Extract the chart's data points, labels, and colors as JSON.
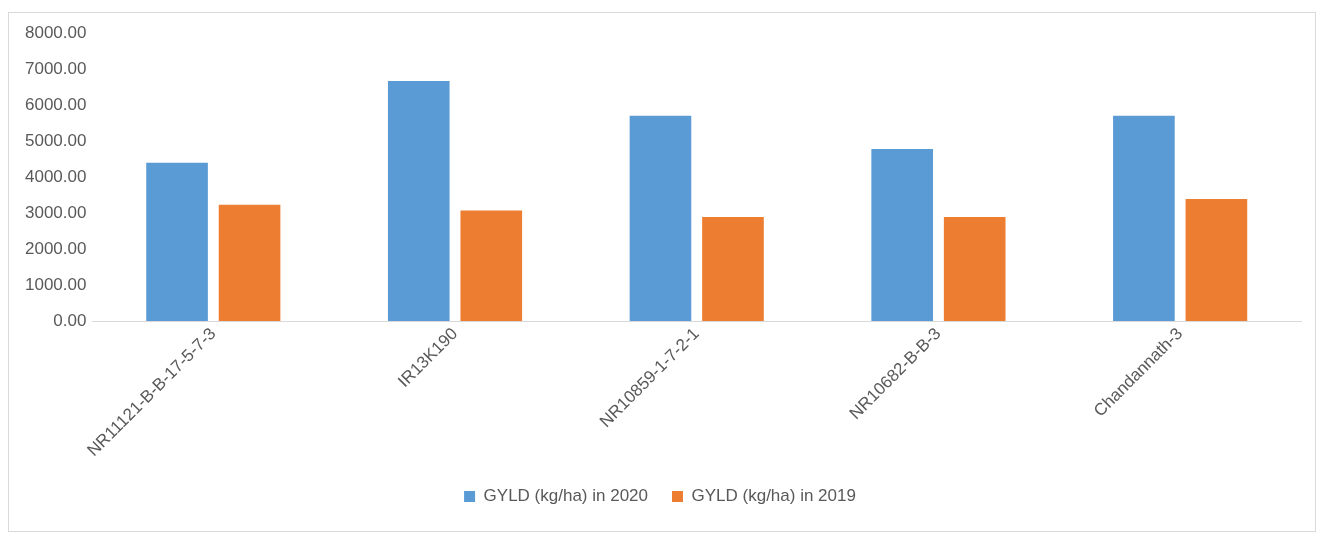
{
  "chart_data": {
    "type": "bar",
    "categories": [
      "NR11121-B-B-17-5-7-3",
      "IR13K190",
      "NR10859-1-7-2-1",
      "NR10682-B-B-3",
      "Chandannath-3"
    ],
    "series": [
      {
        "name": "GYLD (kg/ha) in 2020",
        "color": "#5b9bd5",
        "values": [
          4400,
          6670,
          5700,
          4780,
          5700
        ]
      },
      {
        "name": "GYLD (kg/ha) in 2019",
        "color": "#ed7d31",
        "values": [
          3230,
          3070,
          2890,
          2890,
          3390
        ]
      }
    ],
    "ylim": [
      0,
      8000
    ],
    "yticks": [
      {
        "value": 0,
        "label": "0.00"
      },
      {
        "value": 1000,
        "label": "1000.00"
      },
      {
        "value": 2000,
        "label": "2000.00"
      },
      {
        "value": 3000,
        "label": "3000.00"
      },
      {
        "value": 4000,
        "label": "4000.00"
      },
      {
        "value": 5000,
        "label": "5000.00"
      },
      {
        "value": 6000,
        "label": "6000.00"
      },
      {
        "value": 7000,
        "label": "7000.00"
      },
      {
        "value": 8000,
        "label": "8000.00"
      }
    ],
    "grid": false,
    "legend": "bottom"
  }
}
